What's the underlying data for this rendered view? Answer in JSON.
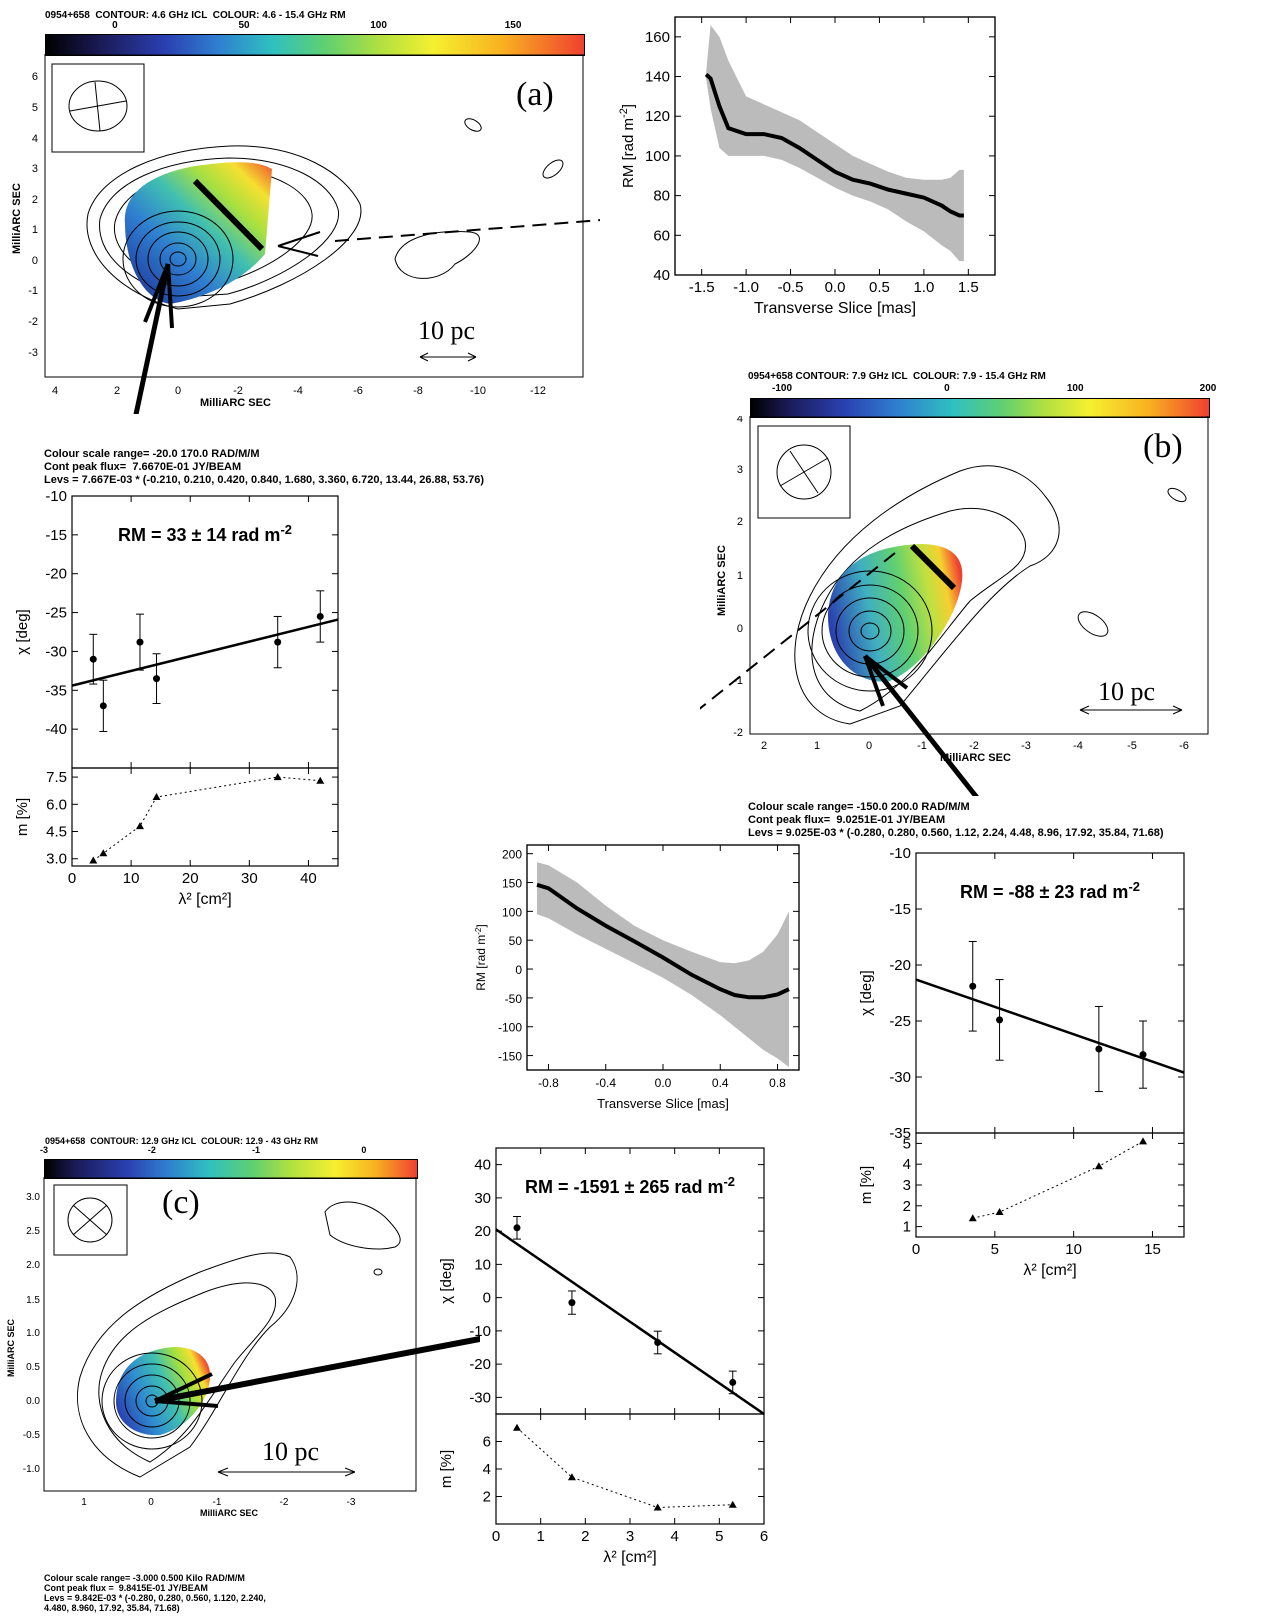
{
  "panel_a": {
    "header": "0954+658  CONTOUR: 4.6 GHz ICL  COLOUR: 4.6 - 15.4 GHz RM",
    "colorbar_ticks": [
      "0",
      "50",
      "100",
      "150"
    ],
    "letter": "(a)",
    "scale_label": "10 pc",
    "x_label": "MilliARC SEC",
    "y_label": "MilliARC SEC",
    "x_ticks": [
      "4",
      "2",
      "0",
      "-2",
      "-4",
      "-6",
      "-8",
      "-10",
      "-12"
    ],
    "y_ticks": [
      "6",
      "5",
      "4",
      "3",
      "2",
      "1",
      "0",
      "-1",
      "-2",
      "-3"
    ],
    "notes": [
      "Colour scale range= -20.0 170.0 RAD/M/M",
      "Cont peak flux=  7.6670E-01 JY/BEAM",
      "Levs = 7.667E-03 * (-0.210, 0.210, 0.420, 0.840, 1.680, 3.360, 6.720, 13.44, 26.88, 53.76)"
    ]
  },
  "panel_b": {
    "header": "0954+658 CONTOUR: 7.9 GHz ICL  COLOUR: 7.9 - 15.4 GHz RM",
    "colorbar_ticks": [
      "-100",
      "0",
      "100",
      "200"
    ],
    "letter": "(b)",
    "scale_label": "10 pc",
    "x_label": "MilliARC SEC",
    "y_label": "MilliARC SEC",
    "x_ticks": [
      "2",
      "1",
      "0",
      "-1",
      "-2",
      "-3",
      "-4",
      "-5",
      "-6"
    ],
    "y_ticks": [
      "4",
      "3",
      "2",
      "1",
      "0",
      "-1",
      "-2"
    ],
    "notes": [
      "Colour scale range= -150.0 200.0 RAD/M/M",
      "Cont peak flux=  9.0251E-01 JY/BEAM",
      "Levs = 9.025E-03 * (-0.280, 0.280, 0.560, 1.12, 2.24, 4.48, 8.96, 17.92, 35.84, 71.68)"
    ]
  },
  "panel_c": {
    "header": "0954+658  CONTOUR: 12.9 GHz ICL  COLOUR: 12.9 - 43 GHz RM",
    "colorbar_ticks": [
      "-3",
      "-2",
      "-1",
      "0"
    ],
    "letter": "(c)",
    "scale_label": "10 pc",
    "x_label": "MilliARC SEC",
    "y_label": "MilliARC SEC",
    "x_ticks": [
      "1",
      "0",
      "-1",
      "-2",
      "-3"
    ],
    "y_ticks": [
      "3.0",
      "2.5",
      "2.0",
      "1.5",
      "1.0",
      "0.5",
      "0.0",
      "-0.5",
      "-1.0"
    ],
    "notes": [
      "Colour scale range= -3.000 0.500 Kilo RAD/M/M",
      "Cont peak flux =  9.8415E-01 JY/BEAM",
      "Levs = 9.842E-03 * (-0.280, 0.280, 0.560, 1.120, 2.240,",
      "4.480, 8.960, 17.92, 35.84, 71.68)"
    ]
  },
  "chart_data": [
    {
      "id": "slice_a",
      "type": "line",
      "xlabel": "Transverse Slice [mas]",
      "ylabel": "RM [rad m-2]",
      "xlim": [
        -1.8,
        1.8
      ],
      "ylim": [
        40,
        170
      ],
      "xticks": [
        -1.5,
        -1.0,
        -0.5,
        0.0,
        0.5,
        1.0,
        1.5
      ],
      "yticks": [
        40,
        60,
        80,
        100,
        120,
        140,
        160
      ],
      "x": [
        -1.45,
        -1.4,
        -1.3,
        -1.2,
        -1.0,
        -0.8,
        -0.6,
        -0.4,
        -0.2,
        0.0,
        0.2,
        0.4,
        0.6,
        0.8,
        1.0,
        1.2,
        1.3,
        1.4,
        1.45
      ],
      "y": [
        141,
        139,
        125,
        114,
        111,
        111,
        109,
        104,
        98,
        92,
        88,
        86,
        83,
        81,
        79,
        75,
        72,
        70,
        70
      ],
      "band_upper": [
        142,
        166,
        160,
        148,
        130,
        126,
        122,
        118,
        112,
        106,
        100,
        96,
        92,
        89,
        88,
        88,
        89,
        93,
        93
      ],
      "band_lower": [
        139,
        124,
        104,
        100,
        100,
        100,
        98,
        94,
        89,
        84,
        80,
        77,
        73,
        67,
        62,
        55,
        52,
        47,
        47
      ]
    },
    {
      "id": "slice_b",
      "type": "line",
      "xlabel": "Transverse Slice [mas]",
      "ylabel": "RM [rad m-2]",
      "xlim": [
        -0.95,
        0.95
      ],
      "ylim": [
        -175,
        215
      ],
      "xticks": [
        -0.8,
        -0.4,
        0.0,
        0.4,
        0.8
      ],
      "yticks": [
        -150,
        -100,
        -50,
        0,
        50,
        100,
        150,
        200
      ],
      "x": [
        -0.88,
        -0.8,
        -0.6,
        -0.4,
        -0.2,
        0.0,
        0.2,
        0.4,
        0.5,
        0.6,
        0.7,
        0.8,
        0.88
      ],
      "y": [
        146,
        140,
        105,
        75,
        48,
        20,
        -10,
        -35,
        -45,
        -49,
        -49,
        -44,
        -35
      ],
      "band_upper": [
        185,
        180,
        150,
        110,
        75,
        50,
        30,
        12,
        10,
        15,
        30,
        60,
        100
      ],
      "band_lower": [
        95,
        88,
        60,
        35,
        10,
        -15,
        -45,
        -80,
        -100,
        -120,
        -140,
        -155,
        -170
      ]
    },
    {
      "id": "fit_a",
      "type": "scatter",
      "title": "RM = 33 ± 14 rad m",
      "title_sup": "-2",
      "xlabel": "λ² [cm²]",
      "ylabel": "χ [deg]",
      "xlim": [
        0,
        45
      ],
      "ylim": [
        -45,
        -10
      ],
      "yticks": [
        -40,
        -35,
        -30,
        -25,
        -20,
        -15,
        -10
      ],
      "points": [
        {
          "x": 3.6,
          "y": -31.0,
          "err": 3.2
        },
        {
          "x": 5.3,
          "y": -37.0,
          "err": 3.3
        },
        {
          "x": 11.5,
          "y": -28.8,
          "err": 3.6
        },
        {
          "x": 14.3,
          "y": -33.5,
          "err": 3.2
        },
        {
          "x": 34.8,
          "y": -28.8,
          "err": 3.3
        },
        {
          "x": 42.0,
          "y": -25.5,
          "err": 3.3
        }
      ],
      "fit_line": [
        [
          0,
          -34.4
        ],
        [
          45,
          -25.9
        ]
      ],
      "m_panel": {
        "ylabel": "m [%]",
        "xlim": [
          0,
          45
        ],
        "ylim": [
          2.6,
          8.0
        ],
        "yticks": [
          3.0,
          4.5,
          6.0,
          7.5
        ],
        "xticks": [
          0,
          10,
          20,
          30,
          40
        ],
        "x": [
          3.6,
          5.3,
          11.5,
          14.3,
          34.8,
          42.0
        ],
        "y": [
          2.9,
          3.3,
          4.8,
          6.4,
          7.5,
          7.3
        ]
      }
    },
    {
      "id": "fit_b",
      "type": "scatter",
      "title": "RM = -88 ± 23 rad m",
      "title_sup": "-2",
      "xlabel": "λ² [cm²]",
      "ylabel": "χ [deg]",
      "xlim": [
        0,
        17
      ],
      "ylim": [
        -35,
        -10
      ],
      "yticks": [
        -35,
        -30,
        -25,
        -20,
        -15,
        -10
      ],
      "points": [
        {
          "x": 3.6,
          "y": -21.9,
          "err": 4.0
        },
        {
          "x": 5.3,
          "y": -24.9,
          "err": 3.6
        },
        {
          "x": 11.6,
          "y": -27.5,
          "err": 3.8
        },
        {
          "x": 14.4,
          "y": -28.0,
          "err": 3.0
        }
      ],
      "fit_line": [
        [
          0,
          -21.3
        ],
        [
          17,
          -29.6
        ]
      ],
      "m_panel": {
        "ylabel": "m [%]",
        "xlim": [
          0,
          17
        ],
        "ylim": [
          0.5,
          5.5
        ],
        "yticks": [
          1,
          2,
          3,
          4,
          5
        ],
        "xticks": [
          0,
          5,
          10,
          15
        ],
        "x": [
          3.6,
          5.3,
          11.6,
          14.4
        ],
        "y": [
          1.4,
          1.7,
          3.9,
          5.1
        ]
      }
    },
    {
      "id": "fit_c",
      "type": "scatter",
      "title": "RM = -1591 ± 265 rad m",
      "title_sup": "-2",
      "xlabel": "λ² [cm²]",
      "ylabel": "χ [deg]",
      "xlim": [
        0,
        6
      ],
      "ylim": [
        -35,
        45
      ],
      "yticks": [
        -30,
        -20,
        -10,
        0,
        10,
        20,
        30,
        40
      ],
      "points": [
        {
          "x": 0.47,
          "y": 21.0,
          "err": 3.4
        },
        {
          "x": 1.7,
          "y": -1.5,
          "err": 3.5
        },
        {
          "x": 3.62,
          "y": -13.5,
          "err": 3.4
        },
        {
          "x": 5.3,
          "y": -25.5,
          "err": 3.4
        }
      ],
      "fit_line": [
        [
          0,
          20.5
        ],
        [
          6,
          -35.0
        ]
      ],
      "m_panel": {
        "ylabel": "m [%]",
        "xlim": [
          0,
          6
        ],
        "ylim": [
          0,
          8
        ],
        "yticks": [
          2,
          4,
          6
        ],
        "xticks": [
          0,
          1,
          2,
          3,
          4,
          5,
          6
        ],
        "x": [
          0.47,
          1.7,
          3.62,
          5.3
        ],
        "y": [
          7.0,
          3.4,
          1.2,
          1.4
        ]
      }
    }
  ]
}
